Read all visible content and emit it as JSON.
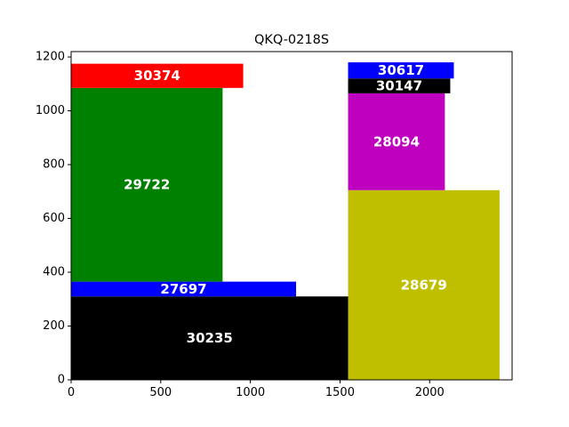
{
  "chart_data": {
    "type": "treemap-rectangles",
    "title": "QKQ-0218S",
    "xlim": [
      0,
      2460
    ],
    "ylim": [
      0,
      1220
    ],
    "xticks": [
      0,
      500,
      1000,
      1500,
      2000
    ],
    "yticks": [
      0,
      200,
      400,
      600,
      800,
      1000,
      1200
    ],
    "grid": false,
    "rectangles": [
      {
        "label": "30235",
        "x0": 0,
        "x1": 1545,
        "y0": 0,
        "y1": 310,
        "color": "#000000"
      },
      {
        "label": "27697",
        "x0": 0,
        "x1": 1255,
        "y0": 310,
        "y1": 365,
        "color": "#0000ff"
      },
      {
        "label": "29722",
        "x0": 0,
        "x1": 845,
        "y0": 365,
        "y1": 1085,
        "color": "#008000"
      },
      {
        "label": "30374",
        "x0": 0,
        "x1": 960,
        "y0": 1085,
        "y1": 1175,
        "color": "#ff0000"
      },
      {
        "label": "28679",
        "x0": 1545,
        "x1": 2390,
        "y0": 0,
        "y1": 705,
        "color": "#bfbf00"
      },
      {
        "label": "28094",
        "x0": 1545,
        "x1": 2085,
        "y0": 705,
        "y1": 1065,
        "color": "#bf00bf"
      },
      {
        "label": "30147",
        "x0": 1545,
        "x1": 2115,
        "y0": 1065,
        "y1": 1120,
        "color": "#000000"
      },
      {
        "label": "30617",
        "x0": 1545,
        "x1": 2135,
        "y0": 1120,
        "y1": 1180,
        "color": "#0000ff"
      }
    ]
  }
}
